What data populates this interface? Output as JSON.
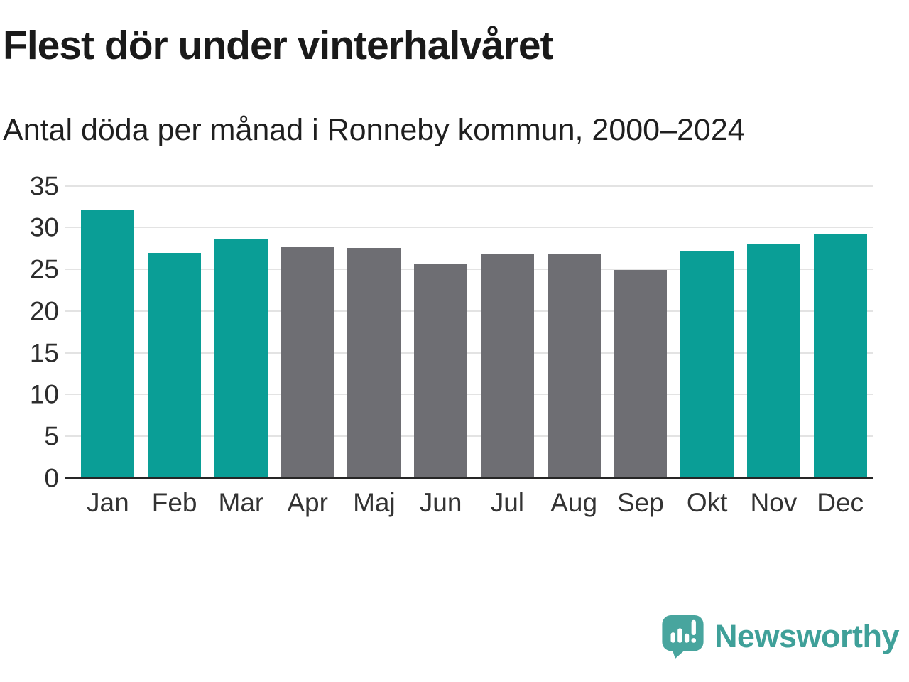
{
  "chart_data": {
    "type": "bar",
    "title": "Flest dör under vinterhalvåret",
    "subtitle": "Antal döda per månad i Ronneby kommun, 2000–2024",
    "categories": [
      "Jan",
      "Feb",
      "Mar",
      "Apr",
      "Maj",
      "Jun",
      "Jul",
      "Aug",
      "Sep",
      "Okt",
      "Nov",
      "Dec"
    ],
    "values": [
      32.2,
      27.0,
      28.7,
      27.7,
      27.6,
      25.6,
      26.8,
      26.8,
      24.9,
      27.2,
      28.1,
      29.3
    ],
    "highlighted": [
      true,
      true,
      true,
      false,
      false,
      false,
      false,
      false,
      false,
      true,
      true,
      true
    ],
    "xlabel": "",
    "ylabel": "",
    "ylim": [
      0,
      35
    ],
    "yticks": [
      0,
      5,
      10,
      15,
      20,
      25,
      30,
      35
    ],
    "grid": true,
    "legend": "none"
  },
  "colors": {
    "bar_highlight": "#0a9e96",
    "bar_muted": "#6e6e73",
    "gridline": "#e3e3e3",
    "axis_line": "#262626",
    "logo_teal": "#48a59e",
    "logo_text_teal": "#3fa099"
  },
  "footer": {
    "brand": "Newsworthy",
    "logo_icon": "newsworthy-speech-bubble-chart-icon"
  }
}
